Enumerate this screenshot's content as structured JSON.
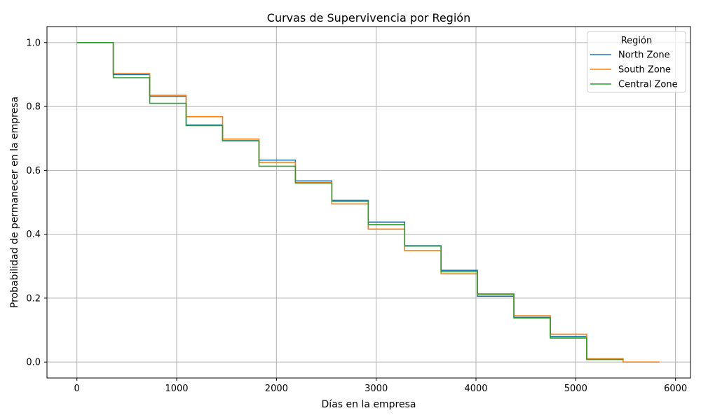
{
  "chart_data": {
    "type": "line",
    "step": true,
    "title": "Curvas de Supervivencia por Región",
    "xlabel": "Días en la empresa",
    "ylabel": "Probabilidad de permanecer en la empresa",
    "xlim": [
      -300,
      6150
    ],
    "ylim": [
      -0.05,
      1.05
    ],
    "xticks": [
      0,
      1000,
      2000,
      3000,
      4000,
      5000,
      6000
    ],
    "xtick_labels": [
      "0",
      "1000",
      "2000",
      "3000",
      "4000",
      "5000",
      "6000"
    ],
    "yticks": [
      0.0,
      0.2,
      0.4,
      0.6,
      0.8,
      1.0
    ],
    "ytick_labels": [
      "0.0",
      "0.2",
      "0.4",
      "0.6",
      "0.8",
      "1.0"
    ],
    "grid": true,
    "legend": {
      "title": "Región",
      "placement": "top-right"
    },
    "series": [
      {
        "name": "North Zone",
        "color": "#1f77b4",
        "points": [
          [
            0,
            1.0
          ],
          [
            365,
            0.9
          ],
          [
            730,
            0.832
          ],
          [
            1095,
            0.742
          ],
          [
            1460,
            0.693
          ],
          [
            1825,
            0.632
          ],
          [
            2190,
            0.567
          ],
          [
            2555,
            0.506
          ],
          [
            2920,
            0.438
          ],
          [
            3285,
            0.364
          ],
          [
            3650,
            0.287
          ],
          [
            4015,
            0.206
          ],
          [
            4380,
            0.14
          ],
          [
            4745,
            0.08
          ],
          [
            5110,
            0.01
          ],
          [
            5475,
            0.01
          ]
        ]
      },
      {
        "name": "South Zone",
        "color": "#ff7f0e",
        "points": [
          [
            0,
            1.0
          ],
          [
            365,
            0.903
          ],
          [
            730,
            0.835
          ],
          [
            1095,
            0.768
          ],
          [
            1460,
            0.698
          ],
          [
            1825,
            0.625
          ],
          [
            2190,
            0.562
          ],
          [
            2555,
            0.495
          ],
          [
            2920,
            0.416
          ],
          [
            3285,
            0.349
          ],
          [
            3650,
            0.276
          ],
          [
            4015,
            0.212
          ],
          [
            4380,
            0.145
          ],
          [
            4745,
            0.087
          ],
          [
            5110,
            0.01
          ],
          [
            5475,
            0.0
          ],
          [
            5840,
            0.0
          ]
        ]
      },
      {
        "name": "Central Zone",
        "color": "#2ca02c",
        "points": [
          [
            0,
            1.0
          ],
          [
            365,
            0.89
          ],
          [
            730,
            0.81
          ],
          [
            1095,
            0.74
          ],
          [
            1460,
            0.692
          ],
          [
            1825,
            0.613
          ],
          [
            2190,
            0.56
          ],
          [
            2555,
            0.503
          ],
          [
            2920,
            0.43
          ],
          [
            3285,
            0.363
          ],
          [
            3650,
            0.283
          ],
          [
            4015,
            0.213
          ],
          [
            4380,
            0.138
          ],
          [
            4745,
            0.075
          ],
          [
            5110,
            0.008
          ],
          [
            5475,
            0.008
          ]
        ]
      }
    ]
  }
}
